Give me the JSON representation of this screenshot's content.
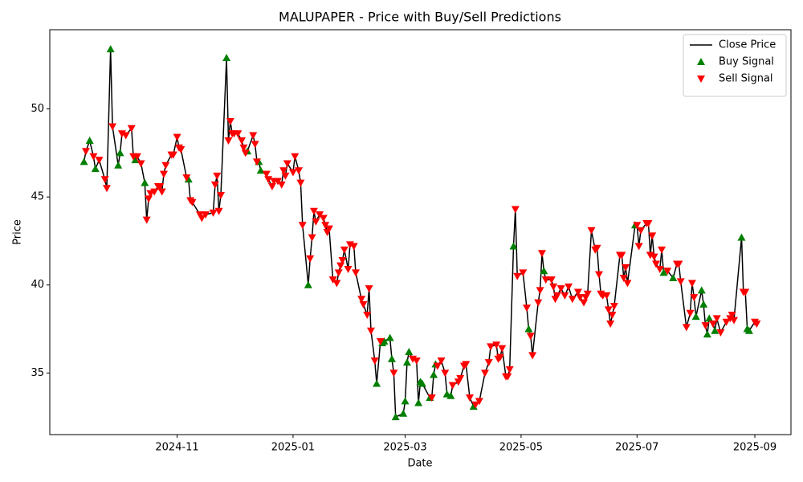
{
  "chart_data": {
    "type": "line",
    "title": "MALUPAPER - Price with Buy/Sell Predictions",
    "x_label": "Date",
    "y_label": "Price",
    "xlim": [
      -67,
      323
    ],
    "ylim": [
      31.5,
      54.5
    ],
    "xticks": [
      {
        "value": 0,
        "label": "2024-11"
      },
      {
        "value": 61,
        "label": "2025-01"
      },
      {
        "value": 120,
        "label": "2025-03"
      },
      {
        "value": 181,
        "label": "2025-05"
      },
      {
        "value": 242,
        "label": "2025-07"
      },
      {
        "value": 304,
        "label": "2025-09"
      }
    ],
    "yticks": [
      35,
      40,
      45,
      50
    ],
    "grid": false,
    "legend": "upper right",
    "series": [
      {
        "name": "Close Price",
        "type": "line",
        "color": "#000000",
        "x": [
          -49,
          -48,
          -46,
          -44,
          -43,
          -41,
          -38,
          -37,
          -35,
          -34,
          -31,
          -30,
          -29,
          -27,
          -24,
          -23,
          -22,
          -21,
          -19,
          -17,
          -16,
          -15,
          -14,
          -12,
          -10,
          -9,
          -8,
          -7,
          -6,
          -3,
          -2,
          0,
          1,
          2,
          5,
          6,
          7,
          8,
          12,
          13,
          15,
          19,
          20,
          21,
          22,
          23,
          26,
          27,
          28,
          29,
          30,
          32,
          34,
          35,
          36,
          37,
          40,
          41,
          42,
          43,
          44,
          47,
          48,
          50,
          51,
          53,
          55,
          56,
          57,
          58,
          61,
          62,
          64,
          65,
          66,
          69,
          70,
          71,
          72,
          73,
          75,
          77,
          78,
          79,
          80,
          82,
          84,
          85,
          86,
          87,
          88,
          90,
          91,
          93,
          94,
          97,
          98,
          100,
          101,
          102,
          104,
          105,
          107,
          108,
          109,
          112,
          113,
          114,
          115,
          119,
          120,
          121,
          122,
          124,
          126,
          127,
          128,
          129,
          133,
          134,
          135,
          136,
          137,
          139,
          141,
          142,
          144,
          145,
          148,
          149,
          151,
          152,
          154,
          156,
          157,
          159,
          162,
          164,
          165,
          168,
          169,
          170,
          171,
          173,
          174,
          175,
          177,
          178,
          179,
          182,
          184,
          185,
          186,
          187,
          190,
          191,
          192,
          193,
          194,
          197,
          198,
          199,
          200,
          202,
          204,
          206,
          208,
          211,
          212,
          214,
          215,
          216,
          218,
          220,
          221,
          222,
          223,
          224,
          226,
          227,
          228,
          229,
          230,
          233,
          234,
          235,
          236,
          237,
          241,
          242,
          243,
          244,
          247,
          248,
          249,
          250,
          251,
          252,
          254,
          255,
          256,
          258,
          261,
          263,
          264,
          265,
          268,
          270,
          271,
          272,
          273,
          276,
          277,
          278,
          279,
          280,
          282,
          283,
          284,
          286,
          289,
          291,
          292,
          293,
          297,
          298,
          299,
          300,
          301,
          304,
          305
        ],
        "values": [
          47.0,
          47.6,
          48.2,
          47.3,
          46.6,
          47.1,
          46.0,
          45.5,
          53.4,
          49.0,
          46.8,
          47.5,
          48.6,
          48.5,
          48.9,
          47.3,
          47.1,
          47.3,
          46.9,
          45.8,
          43.7,
          44.9,
          45.2,
          45.3,
          45.6,
          45.6,
          45.3,
          46.3,
          46.8,
          47.4,
          47.4,
          48.4,
          47.8,
          47.7,
          46.1,
          46.0,
          44.8,
          44.7,
          44.0,
          43.8,
          44.0,
          44.1,
          45.7,
          46.2,
          44.2,
          45.1,
          52.9,
          48.2,
          49.3,
          48.6,
          48.6,
          48.6,
          48.2,
          47.8,
          47.5,
          47.6,
          48.5,
          48.0,
          47.0,
          47.0,
          46.5,
          46.3,
          46.0,
          45.6,
          45.9,
          45.9,
          45.7,
          46.5,
          46.2,
          46.9,
          46.4,
          47.3,
          46.5,
          45.8,
          43.4,
          40.0,
          41.5,
          42.7,
          44.2,
          43.6,
          44.0,
          43.8,
          43.4,
          43.0,
          43.2,
          40.3,
          40.1,
          40.7,
          41.1,
          41.4,
          42.0,
          40.9,
          42.3,
          42.2,
          40.7,
          39.2,
          38.9,
          38.3,
          39.8,
          37.4,
          35.7,
          34.4,
          36.8,
          36.7,
          36.8,
          37.0,
          35.8,
          35.0,
          32.5,
          32.7,
          33.4,
          35.6,
          36.2,
          35.8,
          35.7,
          33.3,
          34.5,
          34.4,
          33.6,
          33.6,
          34.9,
          35.5,
          35.4,
          35.7,
          35.0,
          33.8,
          33.7,
          34.3,
          34.5,
          34.7,
          35.4,
          35.5,
          33.6,
          33.1,
          33.2,
          33.4,
          35.0,
          35.6,
          36.5,
          36.6,
          35.8,
          35.9,
          36.4,
          34.8,
          34.8,
          35.2,
          42.2,
          44.3,
          40.5,
          40.7,
          38.7,
          37.5,
          37.1,
          36.0,
          39.0,
          39.7,
          41.8,
          40.8,
          40.3,
          40.3,
          39.9,
          39.2,
          39.4,
          39.8,
          39.4,
          39.9,
          39.2,
          39.6,
          39.3,
          39.0,
          39.3,
          39.5,
          43.1,
          42.0,
          42.1,
          40.6,
          39.5,
          39.4,
          39.4,
          38.6,
          37.8,
          38.3,
          38.8,
          41.7,
          41.7,
          40.4,
          41.0,
          40.1,
          43.4,
          43.4,
          42.2,
          43.1,
          43.5,
          43.5,
          41.7,
          42.8,
          41.6,
          41.2,
          40.9,
          42.0,
          40.7,
          40.8,
          40.4,
          41.2,
          41.2,
          40.2,
          37.6,
          38.4,
          40.1,
          39.3,
          38.2,
          39.7,
          38.9,
          37.7,
          37.2,
          38.1,
          37.8,
          37.4,
          38.1,
          37.3,
          37.9,
          38.1,
          38.3,
          38.0,
          42.7,
          39.6,
          39.6,
          37.5,
          37.4,
          37.9,
          37.8
        ]
      },
      {
        "name": "Buy Signal",
        "type": "scatter",
        "marker": "triangle-up",
        "color": "#008000",
        "x": [
          -49,
          -46,
          -43,
          -35,
          -31,
          -30,
          -22,
          -17,
          6,
          26,
          37,
          43,
          44,
          69,
          105,
          108,
          109,
          112,
          113,
          115,
          119,
          120,
          121,
          122,
          127,
          128,
          129,
          133,
          135,
          136,
          142,
          144,
          156,
          177,
          185,
          193,
          241,
          256,
          261,
          273,
          276,
          277,
          279,
          280,
          283,
          297,
          300,
          301
        ],
        "values": [
          47.0,
          48.2,
          46.6,
          53.4,
          46.8,
          47.5,
          47.1,
          45.8,
          46.0,
          52.9,
          47.6,
          47.0,
          46.5,
          40.0,
          34.4,
          36.7,
          36.8,
          37.0,
          35.8,
          32.5,
          32.7,
          33.4,
          35.6,
          36.2,
          33.3,
          34.5,
          34.4,
          33.6,
          34.9,
          35.5,
          33.8,
          33.7,
          33.1,
          42.2,
          37.5,
          40.8,
          43.4,
          40.7,
          40.4,
          38.2,
          39.7,
          38.9,
          37.2,
          38.1,
          37.4,
          42.7,
          37.5,
          37.4
        ]
      },
      {
        "name": "Sell Signal",
        "type": "scatter",
        "marker": "triangle-down",
        "color": "#ff0000",
        "x": [
          -48,
          -44,
          -41,
          -38,
          -37,
          -34,
          -29,
          -27,
          -24,
          -23,
          -21,
          -19,
          -16,
          -15,
          -14,
          -12,
          -10,
          -9,
          -8,
          -7,
          -6,
          -3,
          -2,
          0,
          1,
          2,
          5,
          7,
          8,
          12,
          13,
          15,
          19,
          20,
          21,
          22,
          23,
          27,
          28,
          29,
          30,
          32,
          34,
          35,
          36,
          40,
          41,
          42,
          47,
          48,
          50,
          51,
          53,
          55,
          56,
          57,
          58,
          61,
          62,
          64,
          65,
          66,
          70,
          71,
          72,
          73,
          75,
          77,
          78,
          79,
          80,
          82,
          84,
          85,
          86,
          87,
          88,
          90,
          91,
          93,
          94,
          97,
          98,
          100,
          101,
          102,
          104,
          107,
          114,
          124,
          126,
          134,
          137,
          139,
          141,
          145,
          148,
          149,
          151,
          152,
          154,
          157,
          159,
          162,
          164,
          165,
          168,
          169,
          170,
          171,
          173,
          174,
          175,
          178,
          179,
          182,
          184,
          186,
          187,
          190,
          191,
          192,
          194,
          197,
          198,
          199,
          200,
          202,
          204,
          206,
          208,
          211,
          212,
          214,
          215,
          216,
          218,
          220,
          221,
          222,
          223,
          224,
          226,
          227,
          228,
          229,
          230,
          233,
          234,
          235,
          236,
          237,
          242,
          243,
          244,
          247,
          248,
          249,
          250,
          251,
          252,
          254,
          255,
          258,
          263,
          264,
          265,
          268,
          270,
          271,
          272,
          278,
          282,
          284,
          286,
          289,
          291,
          292,
          293,
          298,
          299,
          304,
          305
        ],
        "values": [
          47.6,
          47.3,
          47.1,
          46.0,
          45.5,
          49.0,
          48.6,
          48.5,
          48.9,
          47.3,
          47.3,
          46.9,
          43.7,
          44.9,
          45.2,
          45.3,
          45.6,
          45.6,
          45.3,
          46.3,
          46.8,
          47.4,
          47.4,
          48.4,
          47.8,
          47.7,
          46.1,
          44.8,
          44.7,
          44.0,
          43.8,
          44.0,
          44.1,
          45.7,
          46.2,
          44.2,
          45.1,
          48.2,
          49.3,
          48.6,
          48.6,
          48.6,
          48.2,
          47.8,
          47.5,
          48.5,
          48.0,
          47.0,
          46.3,
          46.0,
          45.6,
          45.9,
          45.9,
          45.7,
          46.5,
          46.2,
          46.9,
          46.4,
          47.3,
          46.5,
          45.8,
          43.4,
          41.5,
          42.7,
          44.2,
          43.6,
          44.0,
          43.8,
          43.4,
          43.0,
          43.2,
          40.3,
          40.1,
          40.7,
          41.1,
          41.4,
          42.0,
          40.9,
          42.3,
          42.2,
          40.7,
          39.2,
          38.9,
          38.3,
          39.8,
          37.4,
          35.7,
          36.8,
          35.0,
          35.8,
          35.7,
          33.6,
          35.4,
          35.7,
          35.0,
          34.3,
          34.5,
          34.7,
          35.4,
          35.5,
          33.6,
          33.2,
          33.4,
          35.0,
          35.6,
          36.5,
          36.6,
          35.8,
          35.9,
          36.4,
          34.8,
          34.8,
          35.2,
          44.3,
          40.5,
          40.7,
          38.7,
          37.1,
          36.0,
          39.0,
          39.7,
          41.8,
          40.3,
          40.3,
          39.9,
          39.2,
          39.4,
          39.8,
          39.4,
          39.9,
          39.2,
          39.6,
          39.3,
          39.0,
          39.3,
          39.5,
          43.1,
          42.0,
          42.1,
          40.6,
          39.5,
          39.4,
          39.4,
          38.6,
          37.8,
          38.3,
          38.8,
          41.7,
          41.7,
          40.4,
          41.0,
          40.1,
          43.4,
          42.2,
          43.1,
          43.5,
          43.5,
          41.7,
          42.8,
          41.6,
          41.2,
          40.9,
          42.0,
          40.8,
          41.2,
          41.2,
          40.2,
          37.6,
          38.4,
          40.1,
          39.3,
          37.7,
          37.8,
          38.1,
          37.3,
          37.9,
          38.1,
          38.3,
          38.0,
          39.6,
          39.6,
          37.9,
          37.8
        ]
      }
    ]
  }
}
